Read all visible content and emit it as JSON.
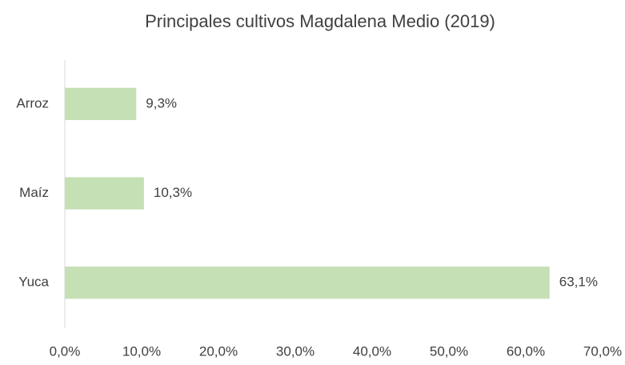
{
  "chart_data": {
    "type": "hbar",
    "title": "Principales cultivos Magdalena Medio (2019)",
    "categories": [
      "Arroz",
      "Maíz",
      "Yuca"
    ],
    "values": [
      9.3,
      10.3,
      63.1
    ],
    "value_labels": [
      "9,3%",
      "10,3%",
      "63,1%"
    ],
    "color": "#c5e0b4",
    "xlim": [
      0,
      70
    ],
    "xticks": [
      {
        "value": 0,
        "label": "0,0%"
      },
      {
        "value": 10,
        "label": "10,0%"
      },
      {
        "value": 20,
        "label": "20,0%"
      },
      {
        "value": 30,
        "label": "30,0%"
      },
      {
        "value": 40,
        "label": "40,0%"
      },
      {
        "value": 50,
        "label": "50,0%"
      },
      {
        "value": 60,
        "label": "60,0%"
      },
      {
        "value": 70,
        "label": "70,0%"
      }
    ],
    "grid": false
  }
}
